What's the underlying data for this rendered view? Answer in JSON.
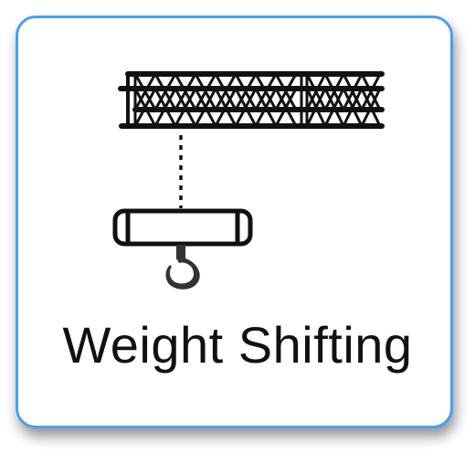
{
  "tile": {
    "label": "Weight Shifting",
    "icon": "crane-hook-truss-icon",
    "border_color": "#4a9ff0",
    "icon_color": "#111111",
    "hook_color": "#333333"
  }
}
